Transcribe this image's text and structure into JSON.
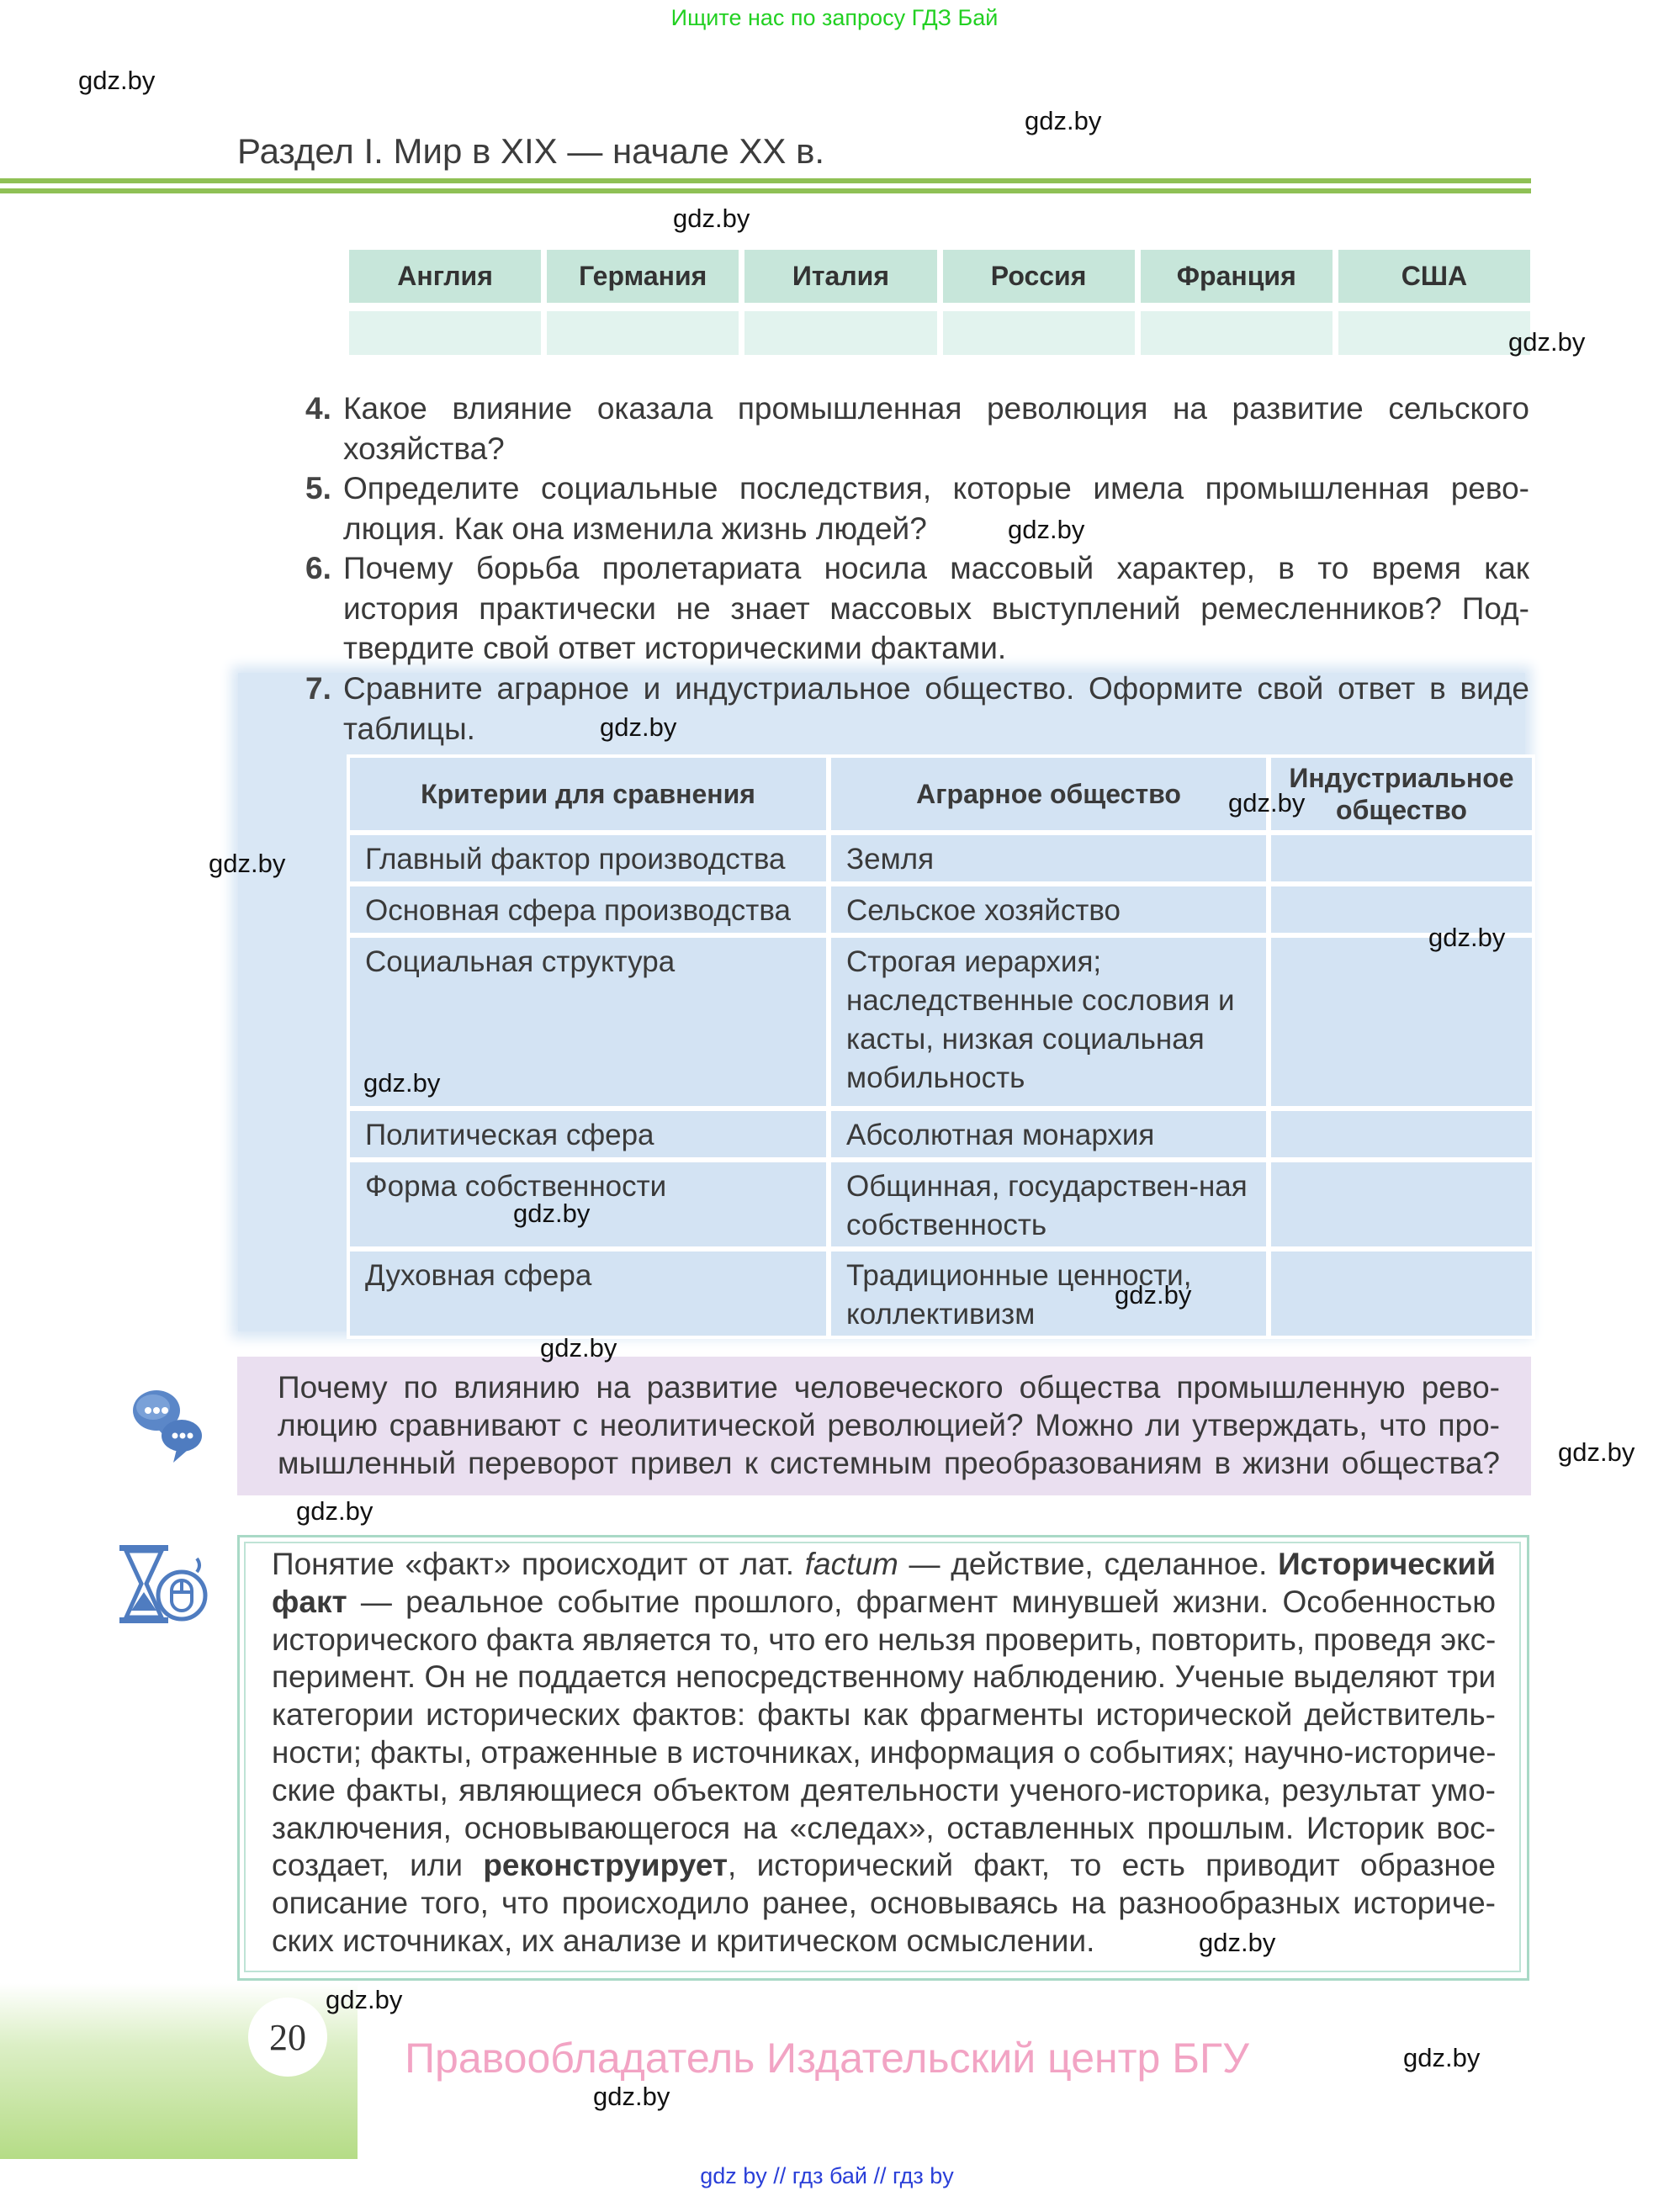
{
  "top_banner": "Ищите нас по запросу ГДЗ Бай",
  "section_title": "Раздел I. Мир в XIX — начале XX в.",
  "country_table": {
    "headers": [
      "Англия",
      "Германия",
      "Италия",
      "Россия",
      "Франция",
      "США"
    ]
  },
  "questions": [
    {
      "num": "4.",
      "lines": [
        "Какое влияние оказала промышленная революция на развитие сельского",
        "хозяйства?"
      ]
    },
    {
      "num": "5.",
      "lines": [
        "Определите социальные последствия, которые имела промышленная рево-",
        "люция. Как она изменила жизнь людей?"
      ]
    },
    {
      "num": "6.",
      "lines": [
        "Почему борьба пролетариата носила массовый характер, в то время как",
        "история практически не знает массовых выступлений ремесленников? Под-",
        "твердите свой ответ историческими фактами."
      ]
    },
    {
      "num": "7.",
      "lines": [
        "Сравните аграрное и индустриальное общество. Оформите свой ответ в виде",
        "таблицы."
      ]
    }
  ],
  "compare_table": {
    "headers": [
      "Критерии для сравнения",
      "Аграрное общество",
      "Индустриальное общество"
    ],
    "rows": [
      {
        "criterion": "Главный фактор производства",
        "agrarian": "Земля",
        "industrial": ""
      },
      {
        "criterion": "Основная сфера производства",
        "agrarian": "Сельское хозяйство",
        "industrial": ""
      },
      {
        "criterion": "Социальная структура",
        "agrarian": "Строгая иерархия; наследственные сословия и касты, низкая социальная мобильность",
        "industrial": ""
      },
      {
        "criterion": "Политическая сфера",
        "agrarian": "Абсолютная монархия",
        "industrial": ""
      },
      {
        "criterion": "Форма собственности",
        "agrarian": "Общинная, государствен-ная собственность",
        "industrial": ""
      },
      {
        "criterion": "Духовная сфера",
        "agrarian": "Традиционные ценности, коллективизм",
        "industrial": ""
      }
    ]
  },
  "discussion": {
    "icon": "speech-bubbles-icon",
    "lines": [
      "Почему по влиянию на развитие человеческого общества промышленную рево-",
      "люцию сравнивают с неолитической революцией? Можно ли утверждать, что про-",
      "мышленный переворот привел к системным преобразованиям в жизни общества?"
    ]
  },
  "fact_box": {
    "icon": "hourglass-mouse-icon",
    "lines": [
      [
        {
          "t": "Понятие «факт» происходит от лат. "
        },
        {
          "t": "factum",
          "i": true
        },
        {
          "t": " — действие, сделанное. "
        },
        {
          "t": "Исторический",
          "b": true
        }
      ],
      [
        {
          "t": "факт",
          "b": true
        },
        {
          "t": " — реальное событие прошлого, фрагмент минувшей жизни. Особенностью"
        }
      ],
      [
        {
          "t": "исторического факта является то, что его нельзя проверить, повторить, проведя экс-"
        }
      ],
      [
        {
          "t": "перимент. Он не поддается непосредственному наблюдению. Ученые выделяют три"
        }
      ],
      [
        {
          "t": "категории исторических фактов: факты как фрагменты исторической действитель-"
        }
      ],
      [
        {
          "t": "ности; факты, отраженные в источниках, информация о событиях; научно-историче-"
        }
      ],
      [
        {
          "t": "ские факты, являющиеся объектом деятельности ученого-историка, результат умо-"
        }
      ],
      [
        {
          "t": "заключения, основывающегося на «следах», оставленных прошлым. Историк вос-"
        }
      ],
      [
        {
          "t": "создает, или "
        },
        {
          "t": "реконструирует",
          "b": true
        },
        {
          "t": ", исторический факт, то есть приводит образное"
        }
      ],
      [
        {
          "t": "описание того, что происходило ранее, основываясь на разнообразных историче-"
        }
      ],
      [
        {
          "t": "ских источниках, их анализе и критическом осмыслении."
        }
      ]
    ]
  },
  "page_number": "20",
  "copyright": "Правообладатель Издательский центр БГУ",
  "bottom_links": "gdz by  //  гдз бай  //  гдз by",
  "watermark": "gdz.by",
  "colors": {
    "accent_green": "#8fc055",
    "banner_green": "#22d022",
    "table_blue": "#d3e3f3",
    "pink": "#eadff0",
    "copyright_pink": "#f2a4c4",
    "link_blue": "#2a3fd8"
  }
}
